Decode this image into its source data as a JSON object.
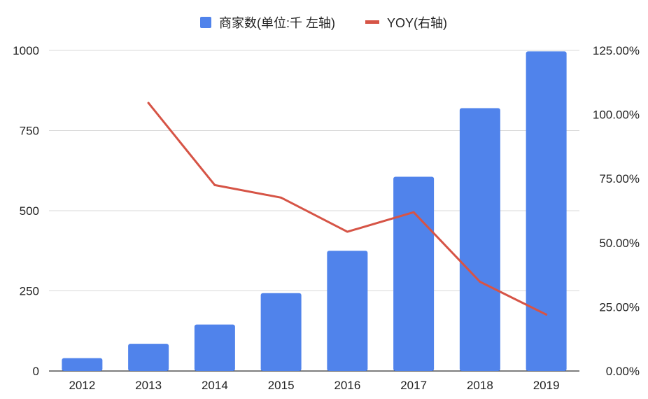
{
  "chart_data": {
    "type": "bar",
    "categories": [
      "2012",
      "2013",
      "2014",
      "2015",
      "2016",
      "2017",
      "2018",
      "2019"
    ],
    "series": [
      {
        "name": "商家数(单位:千  左轴)",
        "type": "bar",
        "axis": "left",
        "color": "#5083EB",
        "values": [
          40,
          85,
          145,
          243,
          375,
          606,
          820,
          997
        ]
      },
      {
        "name": "YOY(右轴)",
        "type": "line",
        "axis": "right",
        "color": "#D65446",
        "values": [
          null,
          104.5,
          72.5,
          67.6,
          54.3,
          61.9,
          34.8,
          22.0
        ]
      }
    ],
    "left_axis": {
      "ylim": [
        0,
        1000
      ],
      "ticks": [
        "0",
        "250",
        "500",
        "750",
        "1000"
      ]
    },
    "right_axis": {
      "ylim": [
        0,
        125
      ],
      "ticks": [
        "0.00%",
        "25.00%",
        "50.00%",
        "75.00%",
        "100.00%",
        "125.00%"
      ]
    },
    "grid": true,
    "legend_position": "top-center"
  }
}
